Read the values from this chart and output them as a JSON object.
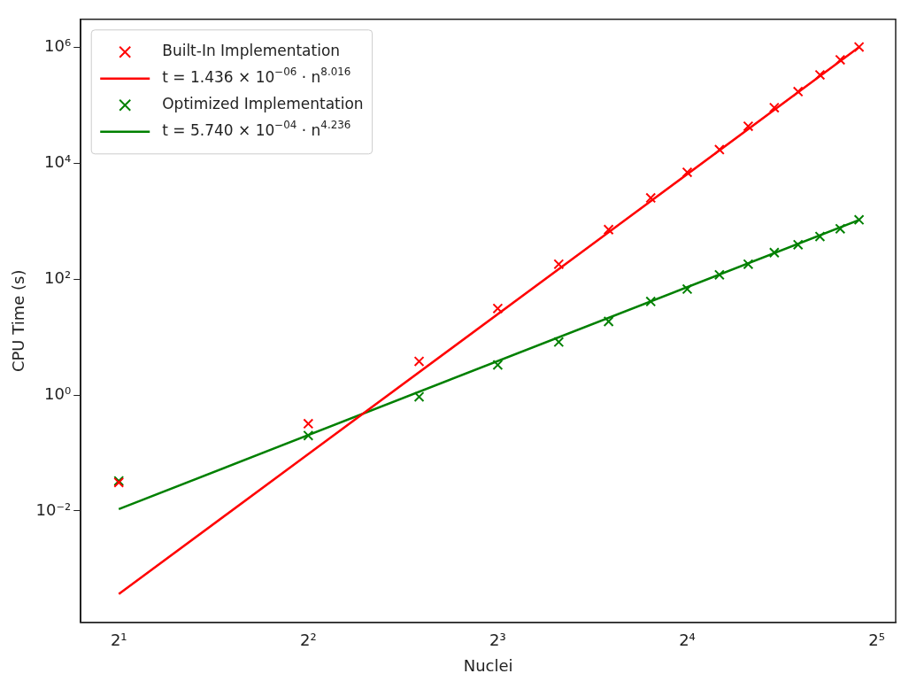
{
  "chart_data": {
    "type": "scatter",
    "xlabel": "Nuclei",
    "ylabel": "CPU Time (s)",
    "log": "xy",
    "grid": false,
    "legend": "top left",
    "xlim": [
      1.74,
      34.3
    ],
    "ylim": [
      0.00012,
      3000000
    ],
    "xticks": [
      {
        "value": 2,
        "label": "2¹"
      },
      {
        "value": 4,
        "label": "2²"
      },
      {
        "value": 8,
        "label": "2³"
      },
      {
        "value": 16,
        "label": "2⁴"
      },
      {
        "value": 32,
        "label": "2⁵"
      }
    ],
    "yticks": [
      {
        "value": 0.01,
        "label": "10⁻²"
      },
      {
        "value": 1,
        "label": "10⁰"
      },
      {
        "value": 100,
        "label": "10²"
      },
      {
        "value": 10000,
        "label": "10⁴"
      },
      {
        "value": 1000000,
        "label": "10⁶"
      }
    ],
    "series": [
      {
        "name": "Built-In Implementation",
        "marker": "cross",
        "color": "#ff0000",
        "x": [
          2,
          4,
          6,
          8,
          10,
          12,
          14,
          16,
          18,
          20,
          22,
          24,
          26,
          28,
          30
        ],
        "values": [
          0.031,
          0.32,
          3.8,
          31,
          180,
          710,
          2500,
          6900,
          17000,
          43000,
          90000,
          170000,
          330000,
          600000,
          1000000
        ]
      },
      {
        "name": "t = 1.436 × 10$^{−06}$ · n$^{8.016}$",
        "type": "line",
        "marker": "none",
        "line_style": "solid",
        "color": "#ff0000",
        "x": [
          2,
          30
        ],
        "values": [
          0.00037,
          990000
        ]
      },
      {
        "name": "Optimized Implementation",
        "marker": "cross",
        "color": "#008000",
        "x": [
          2,
          4,
          6,
          8,
          10,
          12,
          14,
          16,
          18,
          20,
          22,
          24,
          26,
          28,
          30
        ],
        "values": [
          0.033,
          0.2,
          0.93,
          3.3,
          8.2,
          18.5,
          41,
          67,
          118,
          180,
          285,
          390,
          540,
          735,
          1050
        ]
      },
      {
        "name": "t = 5.740 × 10$^{−04}$ · n$^{4.236}$",
        "type": "line",
        "marker": "none",
        "line_style": "solid",
        "color": "#008000",
        "x": [
          2,
          30
        ],
        "values": [
          0.0108,
          1040
        ]
      }
    ]
  }
}
